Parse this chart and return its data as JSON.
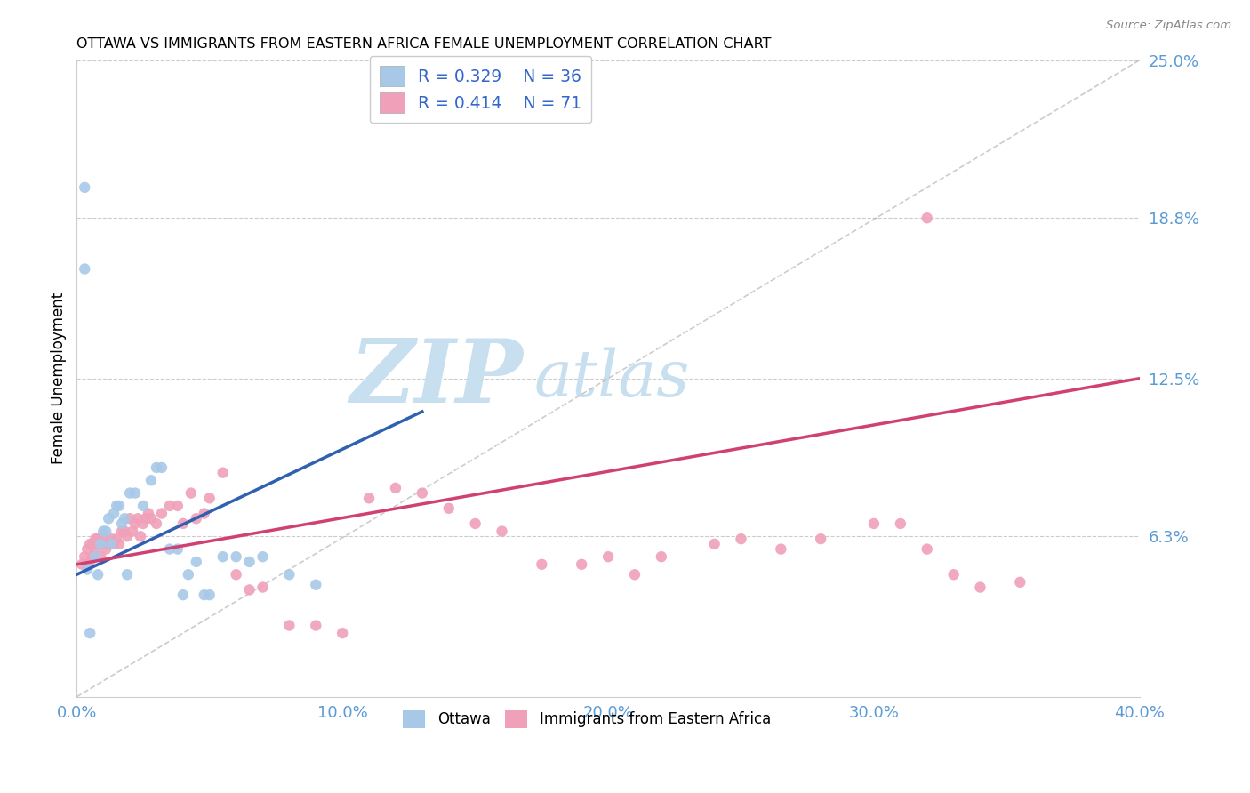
{
  "title": "OTTAWA VS IMMIGRANTS FROM EASTERN AFRICA FEMALE UNEMPLOYMENT CORRELATION CHART",
  "source": "Source: ZipAtlas.com",
  "ylabel": "Female Unemployment",
  "xlim": [
    0.0,
    0.4
  ],
  "ylim": [
    0.0,
    0.25
  ],
  "yticks": [
    0.063,
    0.125,
    0.188,
    0.25
  ],
  "ytick_labels": [
    "6.3%",
    "12.5%",
    "18.8%",
    "25.0%"
  ],
  "xticks": [
    0.0,
    0.1,
    0.2,
    0.3,
    0.4
  ],
  "xtick_labels": [
    "0.0%",
    "10.0%",
    "20.0%",
    "30.0%",
    "40.0%"
  ],
  "ottawa_R": 0.329,
  "ottawa_N": 36,
  "immigrants_R": 0.414,
  "immigrants_N": 71,
  "ottawa_color": "#a8c8e8",
  "ottawa_line_color": "#3060b0",
  "immigrants_color": "#f0a0b8",
  "immigrants_line_color": "#d04070",
  "legend_text_color": "#3366cc",
  "axis_label_color": "#5b9bd5",
  "watermark_zip": "ZIP",
  "watermark_atlas": "atlas",
  "watermark_color_zip": "#c8dff0",
  "watermark_color_atlas": "#c8dff0",
  "ref_line_color": "#aaaaaa",
  "grid_color": "#cccccc",
  "ottawa_x": [
    0.005,
    0.007,
    0.008,
    0.009,
    0.01,
    0.011,
    0.012,
    0.013,
    0.014,
    0.015,
    0.016,
    0.017,
    0.018,
    0.019,
    0.02,
    0.022,
    0.025,
    0.028,
    0.03,
    0.032,
    0.035,
    0.038,
    0.04,
    0.042,
    0.045,
    0.048,
    0.05,
    0.055,
    0.06,
    0.065,
    0.07,
    0.08,
    0.09,
    0.003,
    0.003,
    0.004
  ],
  "ottawa_y": [
    0.025,
    0.055,
    0.048,
    0.06,
    0.065,
    0.065,
    0.07,
    0.06,
    0.072,
    0.075,
    0.075,
    0.068,
    0.07,
    0.048,
    0.08,
    0.08,
    0.075,
    0.085,
    0.09,
    0.09,
    0.058,
    0.058,
    0.04,
    0.048,
    0.053,
    0.04,
    0.04,
    0.055,
    0.055,
    0.053,
    0.055,
    0.048,
    0.044,
    0.168,
    0.2,
    0.05
  ],
  "immigrants_x": [
    0.002,
    0.003,
    0.004,
    0.005,
    0.005,
    0.006,
    0.006,
    0.007,
    0.007,
    0.008,
    0.008,
    0.009,
    0.009,
    0.01,
    0.01,
    0.011,
    0.012,
    0.013,
    0.014,
    0.015,
    0.016,
    0.017,
    0.018,
    0.019,
    0.02,
    0.021,
    0.022,
    0.023,
    0.024,
    0.025,
    0.026,
    0.027,
    0.028,
    0.03,
    0.032,
    0.035,
    0.038,
    0.04,
    0.043,
    0.045,
    0.048,
    0.05,
    0.055,
    0.06,
    0.065,
    0.07,
    0.08,
    0.09,
    0.1,
    0.11,
    0.12,
    0.13,
    0.14,
    0.15,
    0.16,
    0.175,
    0.19,
    0.2,
    0.21,
    0.22,
    0.24,
    0.25,
    0.265,
    0.28,
    0.3,
    0.31,
    0.32,
    0.33,
    0.34,
    0.355,
    0.32
  ],
  "immigrants_y": [
    0.052,
    0.055,
    0.058,
    0.053,
    0.06,
    0.055,
    0.06,
    0.058,
    0.062,
    0.06,
    0.062,
    0.055,
    0.06,
    0.06,
    0.063,
    0.058,
    0.06,
    0.062,
    0.06,
    0.062,
    0.06,
    0.065,
    0.065,
    0.063,
    0.07,
    0.065,
    0.068,
    0.07,
    0.063,
    0.068,
    0.07,
    0.072,
    0.07,
    0.068,
    0.072,
    0.075,
    0.075,
    0.068,
    0.08,
    0.07,
    0.072,
    0.078,
    0.088,
    0.048,
    0.042,
    0.043,
    0.028,
    0.028,
    0.025,
    0.078,
    0.082,
    0.08,
    0.074,
    0.068,
    0.065,
    0.052,
    0.052,
    0.055,
    0.048,
    0.055,
    0.06,
    0.062,
    0.058,
    0.062,
    0.068,
    0.068,
    0.058,
    0.048,
    0.043,
    0.045,
    0.188
  ],
  "ottawa_trendline_x0": 0.0,
  "ottawa_trendline_x1": 0.13,
  "ottawa_trendline_y0": 0.048,
  "ottawa_trendline_y1": 0.112,
  "immigrants_trendline_x0": 0.0,
  "immigrants_trendline_x1": 0.4,
  "immigrants_trendline_y0": 0.052,
  "immigrants_trendline_y1": 0.125
}
